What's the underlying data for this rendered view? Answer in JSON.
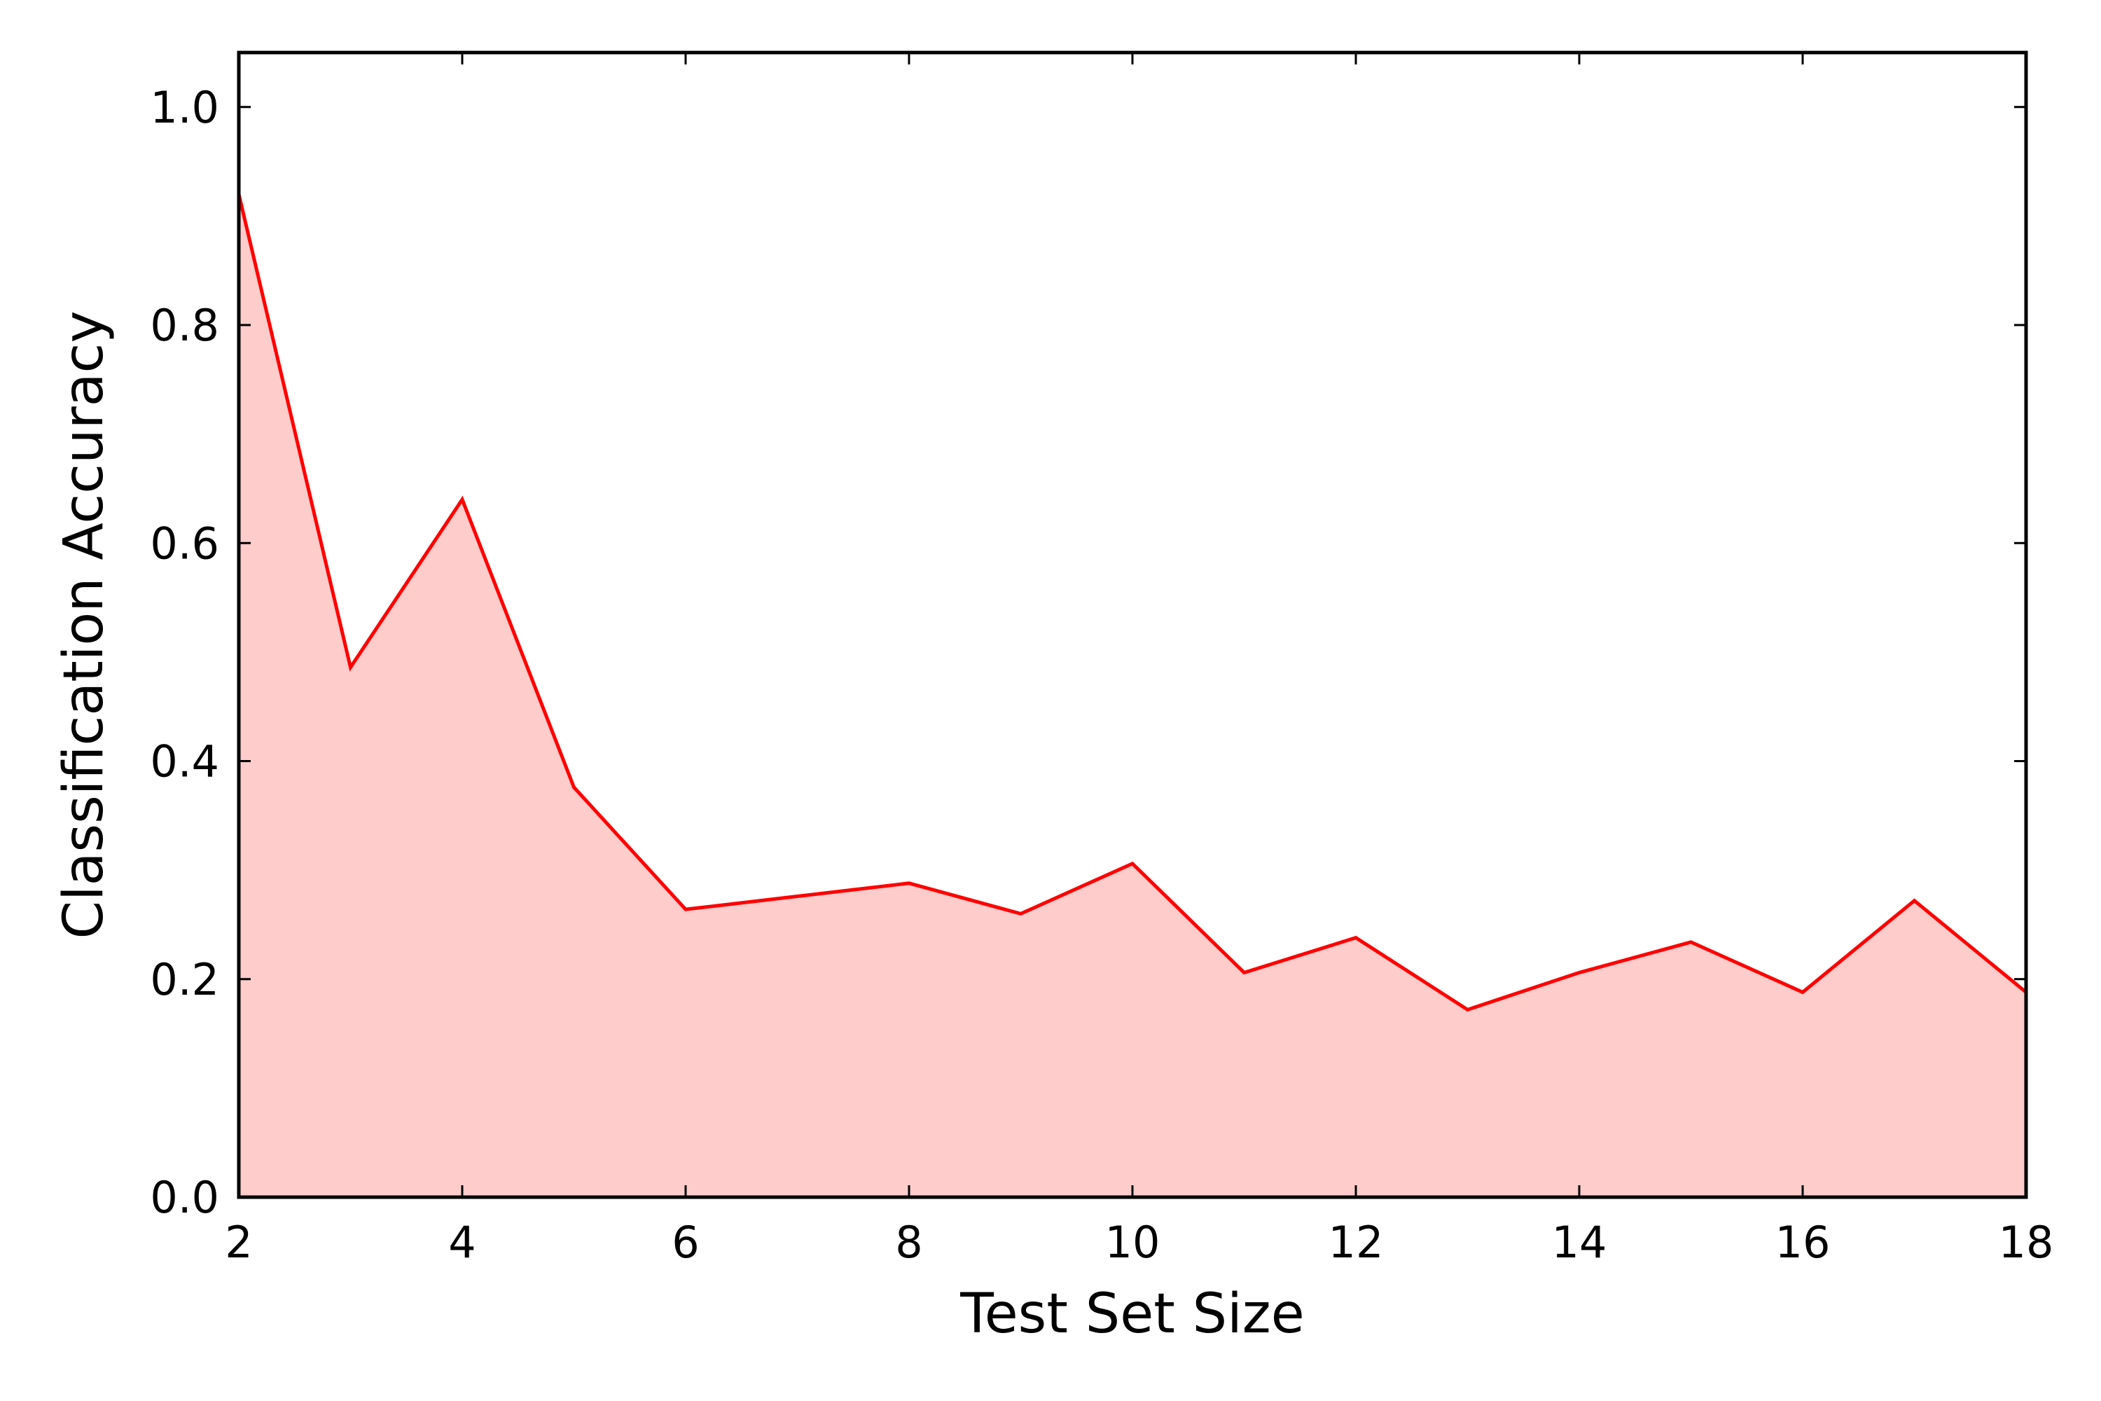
{
  "chart_data": {
    "type": "area",
    "xlabel": "Test Set Size",
    "ylabel": "Classification Accuracy",
    "xlim": [
      2,
      18
    ],
    "ylim": [
      0.0,
      1.05
    ],
    "xticks": [
      "2",
      "4",
      "6",
      "8",
      "10",
      "12",
      "14",
      "16",
      "18"
    ],
    "yticks": [
      "0.0",
      "0.2",
      "0.4",
      "0.6",
      "0.8",
      "1.0"
    ],
    "grid": false,
    "series": [
      {
        "color": "#ff0000",
        "fill_color": "#ffcccc",
        "x": [
          2,
          3,
          4,
          5,
          6,
          7,
          8,
          9,
          10,
          11,
          12,
          13,
          14,
          15,
          16,
          17,
          18
        ],
        "y": [
          0.92,
          0.486,
          0.64,
          0.376,
          0.264,
          0.276,
          0.288,
          0.26,
          0.306,
          0.206,
          0.238,
          0.172,
          0.206,
          0.234,
          0.188,
          0.272,
          0.188
        ]
      }
    ]
  }
}
